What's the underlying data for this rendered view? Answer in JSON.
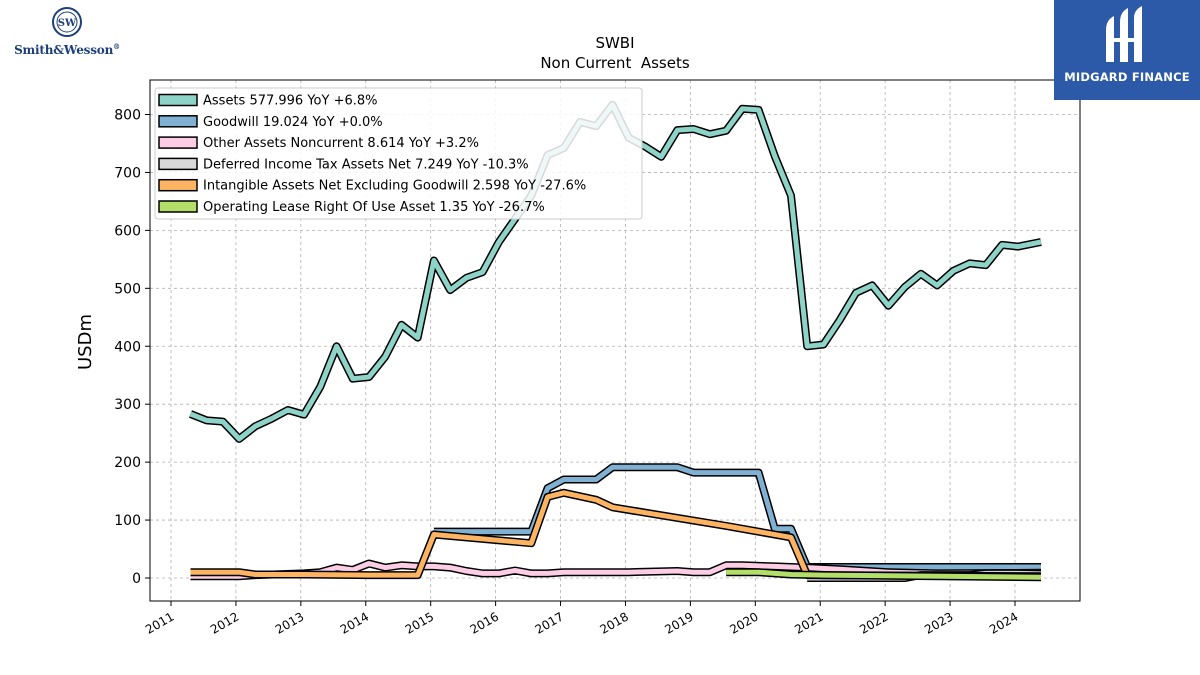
{
  "branding": {
    "left_logo_text": "Smith&Wesson",
    "left_logo_mark": "®",
    "right_logo_text": "MIDGARD FINANCE"
  },
  "chart_data": {
    "type": "line",
    "title": "SWBI",
    "subtitle": "Non Current  Assets",
    "ylabel": "USDm",
    "xlabel": "",
    "xlim": [
      2010.7,
      2024.95
    ],
    "ylim": [
      -40,
      860
    ],
    "y_ticks": [
      0,
      100,
      200,
      300,
      400,
      500,
      600,
      700,
      800
    ],
    "x_ticks": [
      2011,
      2012,
      2013,
      2014,
      2015,
      2016,
      2017,
      2018,
      2019,
      2020,
      2021,
      2022,
      2023,
      2024
    ],
    "grid": true,
    "legend_position": "top-left",
    "series": [
      {
        "name": "Assets",
        "legend": "Assets  577.996 YoY +6.8%",
        "color": "#8dd3c7",
        "points": [
          [
            2011.3,
            283
          ],
          [
            2011.55,
            272
          ],
          [
            2011.8,
            270
          ],
          [
            2012.05,
            240
          ],
          [
            2012.3,
            262
          ],
          [
            2012.55,
            275
          ],
          [
            2012.8,
            290
          ],
          [
            2013.05,
            282
          ],
          [
            2013.3,
            330
          ],
          [
            2013.55,
            400
          ],
          [
            2013.8,
            344
          ],
          [
            2014.05,
            347
          ],
          [
            2014.3,
            382
          ],
          [
            2014.55,
            437
          ],
          [
            2014.8,
            415
          ],
          [
            2015.05,
            548
          ],
          [
            2015.3,
            497
          ],
          [
            2015.55,
            518
          ],
          [
            2015.8,
            528
          ],
          [
            2016.05,
            580
          ],
          [
            2016.3,
            620
          ],
          [
            2016.55,
            660
          ],
          [
            2016.8,
            730
          ],
          [
            2017.05,
            742
          ],
          [
            2017.3,
            787
          ],
          [
            2017.55,
            780
          ],
          [
            2017.8,
            817
          ],
          [
            2018.05,
            760
          ],
          [
            2018.3,
            745
          ],
          [
            2018.55,
            727
          ],
          [
            2018.8,
            773
          ],
          [
            2019.05,
            775
          ],
          [
            2019.3,
            766
          ],
          [
            2019.55,
            772
          ],
          [
            2019.8,
            810
          ],
          [
            2020.05,
            808
          ],
          [
            2020.3,
            728
          ],
          [
            2020.55,
            660
          ],
          [
            2020.8,
            400
          ],
          [
            2021.05,
            403
          ],
          [
            2021.3,
            445
          ],
          [
            2021.55,
            492
          ],
          [
            2021.8,
            505
          ],
          [
            2022.05,
            470
          ],
          [
            2022.3,
            502
          ],
          [
            2022.55,
            525
          ],
          [
            2022.8,
            505
          ],
          [
            2023.05,
            530
          ],
          [
            2023.3,
            543
          ],
          [
            2023.55,
            540
          ],
          [
            2023.8,
            575
          ],
          [
            2024.05,
            572
          ],
          [
            2024.4,
            580
          ]
        ]
      },
      {
        "name": "Goodwill",
        "legend": "Goodwill  19.024 YoY +0.0%",
        "color": "#80b1d3",
        "points": [
          [
            2015.05,
            80
          ],
          [
            2016.55,
            80
          ],
          [
            2016.8,
            155
          ],
          [
            2017.05,
            170
          ],
          [
            2017.55,
            170
          ],
          [
            2017.8,
            191
          ],
          [
            2018.8,
            191
          ],
          [
            2019.05,
            182
          ],
          [
            2020.05,
            182
          ],
          [
            2020.3,
            85
          ],
          [
            2020.55,
            85
          ],
          [
            2020.8,
            19
          ],
          [
            2024.4,
            19
          ]
        ]
      },
      {
        "name": "Other Assets Noncurrent",
        "legend": "Other Assets Noncurrent  8.614 YoY +3.2%",
        "color": "#fccde5",
        "points": [
          [
            2011.3,
            3
          ],
          [
            2012.05,
            3
          ],
          [
            2012.3,
            5
          ],
          [
            2013.05,
            8
          ],
          [
            2013.3,
            10
          ],
          [
            2013.55,
            18
          ],
          [
            2013.8,
            14
          ],
          [
            2014.05,
            25
          ],
          [
            2014.3,
            18
          ],
          [
            2014.55,
            22
          ],
          [
            2014.8,
            20
          ],
          [
            2015.05,
            20
          ],
          [
            2015.3,
            18
          ],
          [
            2015.55,
            12
          ],
          [
            2015.8,
            8
          ],
          [
            2016.05,
            8
          ],
          [
            2016.3,
            13
          ],
          [
            2016.55,
            8
          ],
          [
            2016.8,
            8
          ],
          [
            2017.05,
            10
          ],
          [
            2018.05,
            10
          ],
          [
            2018.8,
            12
          ],
          [
            2019.05,
            10
          ],
          [
            2019.3,
            10
          ],
          [
            2019.55,
            22
          ],
          [
            2019.8,
            22
          ],
          [
            2020.3,
            20
          ],
          [
            2020.8,
            18
          ],
          [
            2021.3,
            15
          ],
          [
            2022.05,
            10
          ],
          [
            2022.8,
            8
          ],
          [
            2024.4,
            9
          ]
        ]
      },
      {
        "name": "Deferred Income Tax Assets Net",
        "legend": "Deferred Income Tax Assets Net  7.249 YoY -10.3%",
        "color": "#d9d9d9",
        "points": [
          [
            2020.8,
            0
          ],
          [
            2022.3,
            0
          ],
          [
            2022.55,
            5
          ],
          [
            2023.3,
            5
          ],
          [
            2023.55,
            8
          ],
          [
            2024.05,
            8
          ],
          [
            2024.4,
            7
          ]
        ]
      },
      {
        "name": "Intangible Assets Net Excluding Goodwill",
        "legend": "Intangible Assets Net Excluding Goodwill  2.598 YoY -27.6%",
        "color": "#fdb462",
        "points": [
          [
            2011.3,
            10
          ],
          [
            2012.05,
            10
          ],
          [
            2012.3,
            6
          ],
          [
            2013.05,
            6
          ],
          [
            2014.05,
            5
          ],
          [
            2014.55,
            5
          ],
          [
            2014.8,
            5
          ],
          [
            2015.05,
            75
          ],
          [
            2016.55,
            60
          ],
          [
            2016.8,
            140
          ],
          [
            2017.05,
            147
          ],
          [
            2017.55,
            135
          ],
          [
            2017.8,
            122
          ],
          [
            2019.55,
            90
          ],
          [
            2020.55,
            70
          ],
          [
            2020.8,
            5
          ],
          [
            2024.4,
            3
          ]
        ]
      },
      {
        "name": "Operating Lease Right Of Use Asset",
        "legend": "Operating Lease Right Of Use Asset  1.35 YoY -26.7%",
        "color": "#b3de69",
        "points": [
          [
            2019.55,
            10
          ],
          [
            2020.05,
            10
          ],
          [
            2020.55,
            6
          ],
          [
            2021.05,
            5
          ],
          [
            2024.4,
            1.35
          ]
        ]
      }
    ]
  }
}
